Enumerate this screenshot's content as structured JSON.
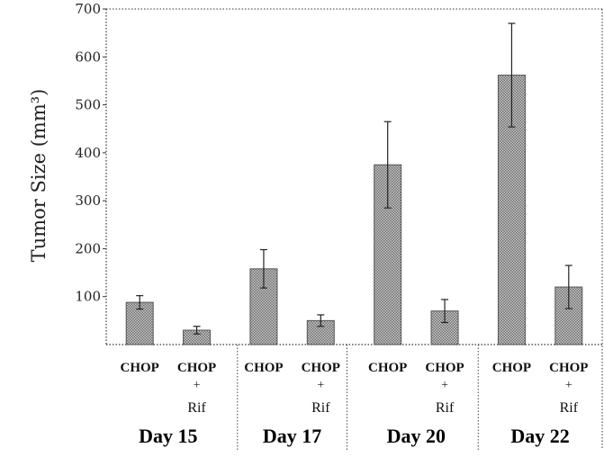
{
  "chart_data": {
    "type": "bar",
    "ylabel": "Tumor Size (mm³)",
    "ylim": [
      0,
      700
    ],
    "yticks": [
      "100",
      "200",
      "300",
      "400",
      "500",
      "600",
      "700"
    ],
    "groups": [
      "Day 15",
      "Day 17",
      "Day 20",
      "Day 22"
    ],
    "bar_labels": [
      [
        "CHOP",
        "",
        ""
      ],
      [
        "CHOP",
        "+",
        "Rif"
      ]
    ],
    "group_label_variants": [
      [
        [
          "CHOP",
          "",
          ""
        ],
        [
          "CHOP",
          "+",
          "Rif"
        ]
      ],
      [
        [
          "CHOP",
          "",
          ""
        ],
        [
          "CHOP",
          "+",
          "Rif"
        ]
      ],
      [
        [
          "CHOP",
          "",
          ""
        ],
        [
          "CHOP",
          "+",
          "Rif"
        ]
      ],
      [
        [
          "CHOP",
          "",
          ""
        ],
        [
          "CHOP",
          "+",
          "Rif"
        ]
      ]
    ],
    "series": [
      {
        "values": [
          88,
          158,
          375,
          562
        ],
        "errors": [
          14,
          40,
          90,
          108
        ]
      },
      {
        "values": [
          30,
          50,
          70,
          120
        ],
        "errors": [
          8,
          12,
          24,
          45
        ]
      }
    ],
    "bar_color": "#9a9a9a",
    "grid": false
  }
}
